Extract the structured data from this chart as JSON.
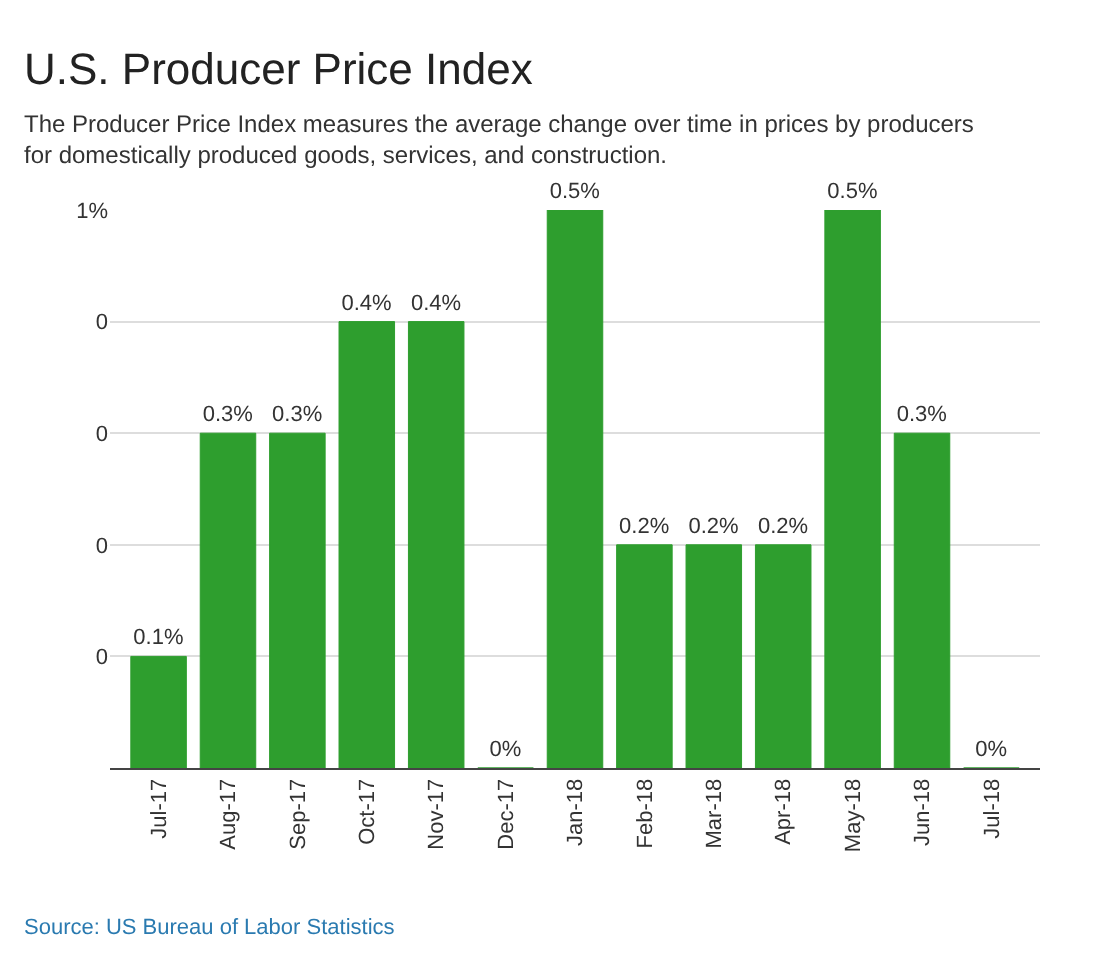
{
  "chart_data": {
    "type": "bar",
    "title": "U.S. Producer Price Index",
    "subtitle": "The Producer Price Index measures the average change over time in prices by producers for domestically produced goods, services, and construction.",
    "categories": [
      "Jul-17",
      "Aug-17",
      "Sep-17",
      "Oct-17",
      "Nov-17",
      "Dec-17",
      "Jan-18",
      "Feb-18",
      "Mar-18",
      "Apr-18",
      "May-18",
      "Jun-18",
      "Jul-18"
    ],
    "values": [
      0.1,
      0.3,
      0.3,
      0.4,
      0.4,
      0,
      0.5,
      0.2,
      0.2,
      0.2,
      0.5,
      0.3,
      0
    ],
    "value_labels": [
      "0.1%",
      "0.3%",
      "0.3%",
      "0.4%",
      "0.4%",
      "0%",
      "0.5%",
      "0.2%",
      "0.2%",
      "0.2%",
      "0.5%",
      "0.3%",
      "0%"
    ],
    "color": "#2e9e2e",
    "ylim": [
      0,
      0.5
    ],
    "yticks": [
      {
        "value": 0.1,
        "label": "0"
      },
      {
        "value": 0.2,
        "label": "0"
      },
      {
        "value": 0.3,
        "label": "0"
      },
      {
        "value": 0.4,
        "label": "0"
      },
      {
        "value": 0.5,
        "label": "1%"
      }
    ],
    "grid": "y",
    "annotations": [
      "Source: US Bureau of Labor Statistics"
    ]
  }
}
